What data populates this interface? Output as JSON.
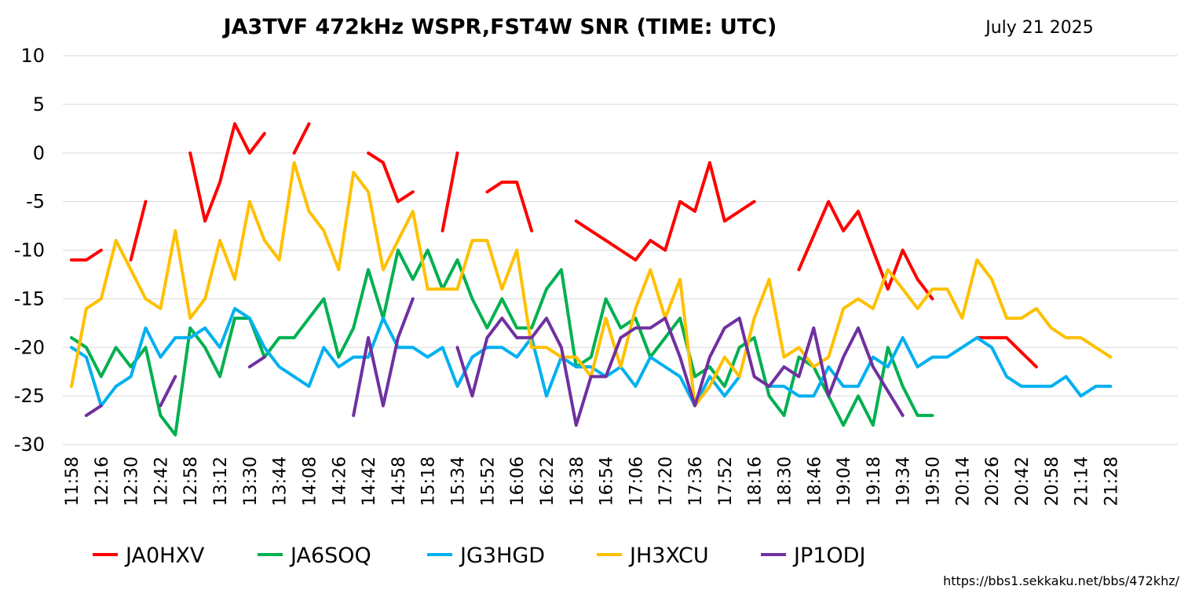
{
  "chart_data": {
    "type": "line",
    "title": "JA3TVF 472kHz WSPR,FST4W SNR (TIME: UTC)",
    "subtitle": "July 21 2025",
    "footer": "https://bbs1.sekkaku.net/bbs/472khz/",
    "ylim": [
      -30,
      10
    ],
    "yticks": [
      10,
      5,
      0,
      -5,
      -10,
      -15,
      -20,
      -25,
      -30
    ],
    "grid": true,
    "legend_position": "bottom",
    "x_tick_labels": [
      "11:58",
      "12:16",
      "12:30",
      "12:42",
      "12:58",
      "13:12",
      "13:30",
      "13:44",
      "14:08",
      "14:26",
      "14:42",
      "14:58",
      "15:18",
      "15:34",
      "15:52",
      "16:06",
      "16:22",
      "16:38",
      "16:54",
      "17:06",
      "17:20",
      "17:36",
      "17:52",
      "18:16",
      "18:30",
      "18:46",
      "19:04",
      "19:18",
      "19:34",
      "19:50",
      "20:14",
      "20:26",
      "20:42",
      "20:58",
      "21:14",
      "21:28"
    ],
    "series": [
      {
        "name": "JA0HXV",
        "color": "#ff0000",
        "values": [
          -11,
          -11,
          -10,
          null,
          -11,
          -5,
          null,
          null,
          0,
          -7,
          -3,
          3,
          0,
          2,
          null,
          0,
          3,
          null,
          null,
          null,
          0,
          -1,
          -5,
          -4,
          null,
          -8,
          0,
          null,
          -4,
          -3,
          -3,
          -8,
          null,
          null,
          -7,
          -8,
          -9,
          -10,
          -11,
          -9,
          -10,
          -5,
          -6,
          -1,
          -7,
          -6,
          -5,
          null,
          null,
          -12,
          -8.5,
          -5,
          -8,
          -6,
          -10,
          -14,
          -10,
          -13,
          -15,
          null,
          null,
          -19,
          -19,
          -19,
          -20.5,
          -22,
          null,
          null,
          null,
          null,
          null,
          null,
          null,
          null,
          null
        ]
      },
      {
        "name": "JA6SOQ",
        "color": "#00b050",
        "values": [
          -19,
          -20,
          -23,
          -20,
          -22,
          -20,
          -27,
          -29,
          -18,
          -20,
          -23,
          -17,
          -17,
          -21,
          -19,
          -19,
          -17,
          -15,
          -21,
          -18,
          -12,
          -17,
          -10,
          -13,
          -10,
          -14,
          -11,
          -15,
          -18,
          -15,
          -18,
          -18,
          -14,
          -12,
          -22,
          -21,
          -15,
          -18,
          -17,
          -21,
          -19,
          -17,
          -23,
          -22,
          -24,
          -20,
          -19,
          -25,
          -27,
          -21,
          -22,
          -25,
          -28,
          -25,
          -28,
          -20,
          -24,
          -27,
          -27,
          null,
          null,
          null,
          null,
          null,
          null,
          null,
          null,
          null,
          null,
          null,
          null,
          null,
          null,
          null,
          null
        ]
      },
      {
        "name": "JG3HGD",
        "color": "#00b0f0",
        "values": [
          -20,
          -21,
          -26,
          -24,
          -23,
          -18,
          -21,
          -19,
          -19,
          -18,
          -20,
          -16,
          -17,
          -20,
          -22,
          -23,
          -24,
          -20,
          -22,
          -21,
          -21,
          -17,
          -20,
          -20,
          -21,
          -20,
          -24,
          -21,
          -20,
          -20,
          -21,
          -19,
          -25,
          -21,
          -22,
          -22,
          -23,
          -22,
          -24,
          -21,
          -22,
          -23,
          -26,
          -23,
          -25,
          -23,
          null,
          -24,
          -24,
          -25,
          -25,
          -22,
          -24,
          -24,
          -21,
          -22,
          -19,
          -22,
          -21,
          -21,
          -20,
          -19,
          -20,
          -23,
          -24,
          -24,
          -24,
          -23,
          -25,
          -24,
          -24,
          null,
          null,
          null,
          null
        ]
      },
      {
        "name": "JH3XCU",
        "color": "#ffc000",
        "values": [
          -24,
          -16,
          -15,
          -9,
          -12,
          -15,
          -16,
          -8,
          -17,
          -15,
          -9,
          -13,
          -5,
          -9,
          -11,
          -1,
          -6,
          -8,
          -12,
          -2,
          -4,
          -12,
          -9,
          -6,
          -14,
          -14,
          -14,
          -9,
          -9,
          -14,
          -10,
          -20,
          -20,
          -21,
          -21,
          -23,
          -17,
          -22,
          -16,
          -12,
          -17,
          -13,
          -26,
          -24,
          -21,
          -23,
          -17,
          -13,
          -21,
          -20,
          -22,
          -21,
          -16,
          -15,
          -16,
          -12,
          -14,
          -16,
          -14,
          -14,
          -17,
          -11,
          -13,
          -17,
          -17,
          -16,
          -18,
          -19,
          -19,
          -20,
          -21,
          null,
          null,
          null,
          null
        ]
      },
      {
        "name": "JP1ODJ",
        "color": "#7030a0",
        "values": [
          null,
          -27,
          -26,
          null,
          null,
          null,
          -26,
          -23,
          null,
          null,
          null,
          null,
          -22,
          -21,
          null,
          null,
          -25,
          null,
          null,
          -27,
          -19,
          -26,
          -19,
          -15,
          null,
          null,
          -20,
          -25,
          -19,
          -17,
          -19,
          -19,
          -17,
          -20,
          -28,
          -23,
          -23,
          -19,
          -18,
          -18,
          -17,
          -21,
          -26,
          -21,
          -18,
          -17,
          -23,
          -24,
          -22,
          -23,
          -18,
          -25,
          -21,
          -18,
          -22,
          -24.5,
          -27,
          null,
          null,
          null,
          null,
          null,
          null,
          null,
          null,
          null,
          null,
          null,
          null,
          null,
          null,
          null,
          null,
          null,
          null
        ]
      }
    ]
  }
}
